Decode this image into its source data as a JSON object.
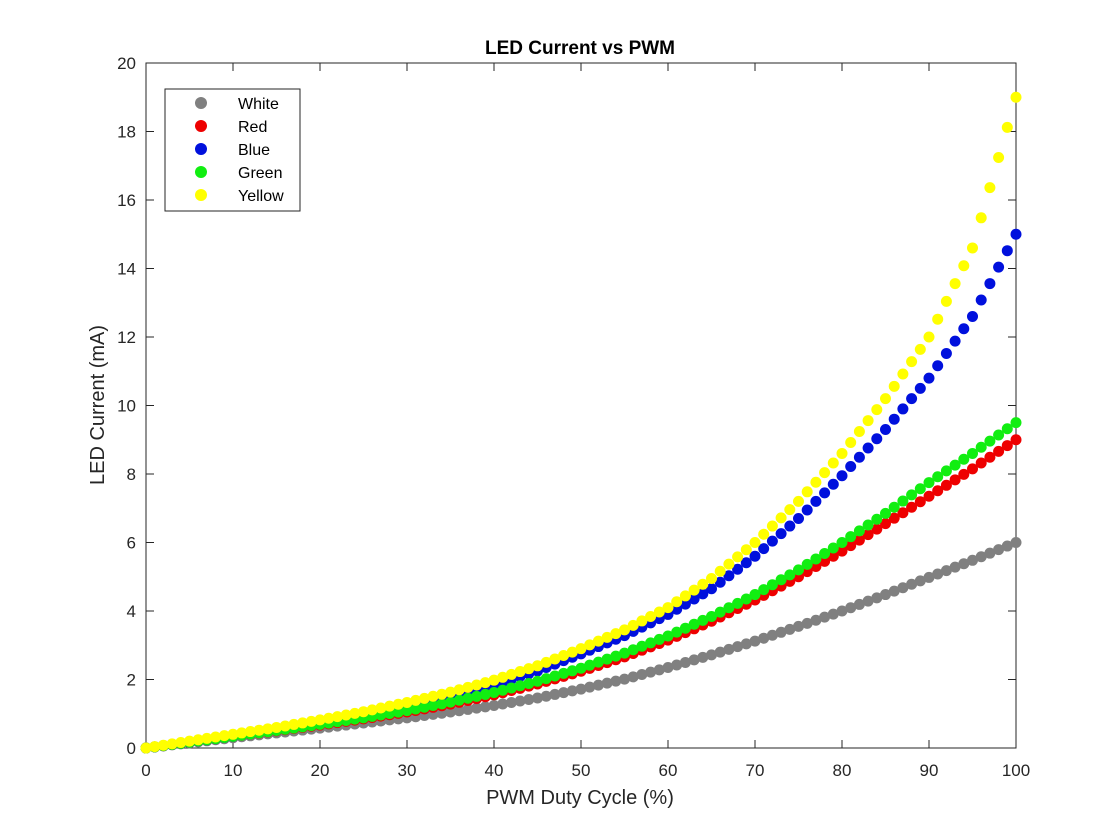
{
  "chart_data": {
    "type": "scatter",
    "title": "LED Current vs PWM",
    "xlabel": "PWM Duty Cycle (%)",
    "ylabel": "LED Current (mA)",
    "xlim": [
      0,
      100
    ],
    "ylim": [
      0,
      20
    ],
    "xticks": [
      0,
      10,
      20,
      30,
      40,
      50,
      60,
      70,
      80,
      90,
      100
    ],
    "yticks": [
      0,
      2,
      4,
      6,
      8,
      10,
      12,
      14,
      16,
      18,
      20
    ],
    "grid": false,
    "legend_position": "top-left",
    "x": [
      0,
      5,
      10,
      15,
      20,
      25,
      30,
      35,
      40,
      45,
      50,
      55,
      60,
      65,
      70,
      75,
      80,
      85,
      90,
      95,
      100
    ],
    "series": [
      {
        "name": "White",
        "color": "#808080",
        "values": [
          0,
          0.15,
          0.3,
          0.44,
          0.58,
          0.73,
          0.88,
          1.05,
          1.24,
          1.46,
          1.72,
          2.01,
          2.35,
          2.72,
          3.12,
          3.55,
          4.0,
          4.48,
          4.98,
          5.48,
          6.0
        ]
      },
      {
        "name": "Red",
        "color": "#ee0000",
        "values": [
          0,
          0.17,
          0.34,
          0.5,
          0.67,
          0.85,
          1.05,
          1.28,
          1.55,
          1.87,
          2.24,
          2.66,
          3.15,
          3.7,
          4.32,
          5.0,
          5.75,
          6.55,
          7.35,
          8.15,
          9.0
        ]
      },
      {
        "name": "Blue",
        "color": "#0010dd",
        "values": [
          0,
          0.17,
          0.34,
          0.52,
          0.72,
          0.95,
          1.2,
          1.5,
          1.85,
          2.25,
          2.75,
          3.28,
          3.9,
          4.65,
          5.6,
          6.7,
          7.95,
          9.3,
          10.8,
          12.6,
          15.0
        ]
      },
      {
        "name": "Green",
        "color": "#11ee11",
        "values": [
          0,
          0.17,
          0.34,
          0.51,
          0.69,
          0.88,
          1.09,
          1.34,
          1.62,
          1.95,
          2.33,
          2.77,
          3.27,
          3.84,
          4.48,
          5.2,
          6.0,
          6.85,
          7.75,
          8.6,
          9.5
        ]
      },
      {
        "name": "Yellow",
        "color": "#ffff00",
        "values": [
          0,
          0.2,
          0.4,
          0.6,
          0.82,
          1.06,
          1.33,
          1.63,
          1.98,
          2.4,
          2.9,
          3.45,
          4.1,
          4.95,
          6.0,
          7.2,
          8.6,
          10.2,
          12.0,
          14.6,
          19.0
        ]
      }
    ]
  }
}
